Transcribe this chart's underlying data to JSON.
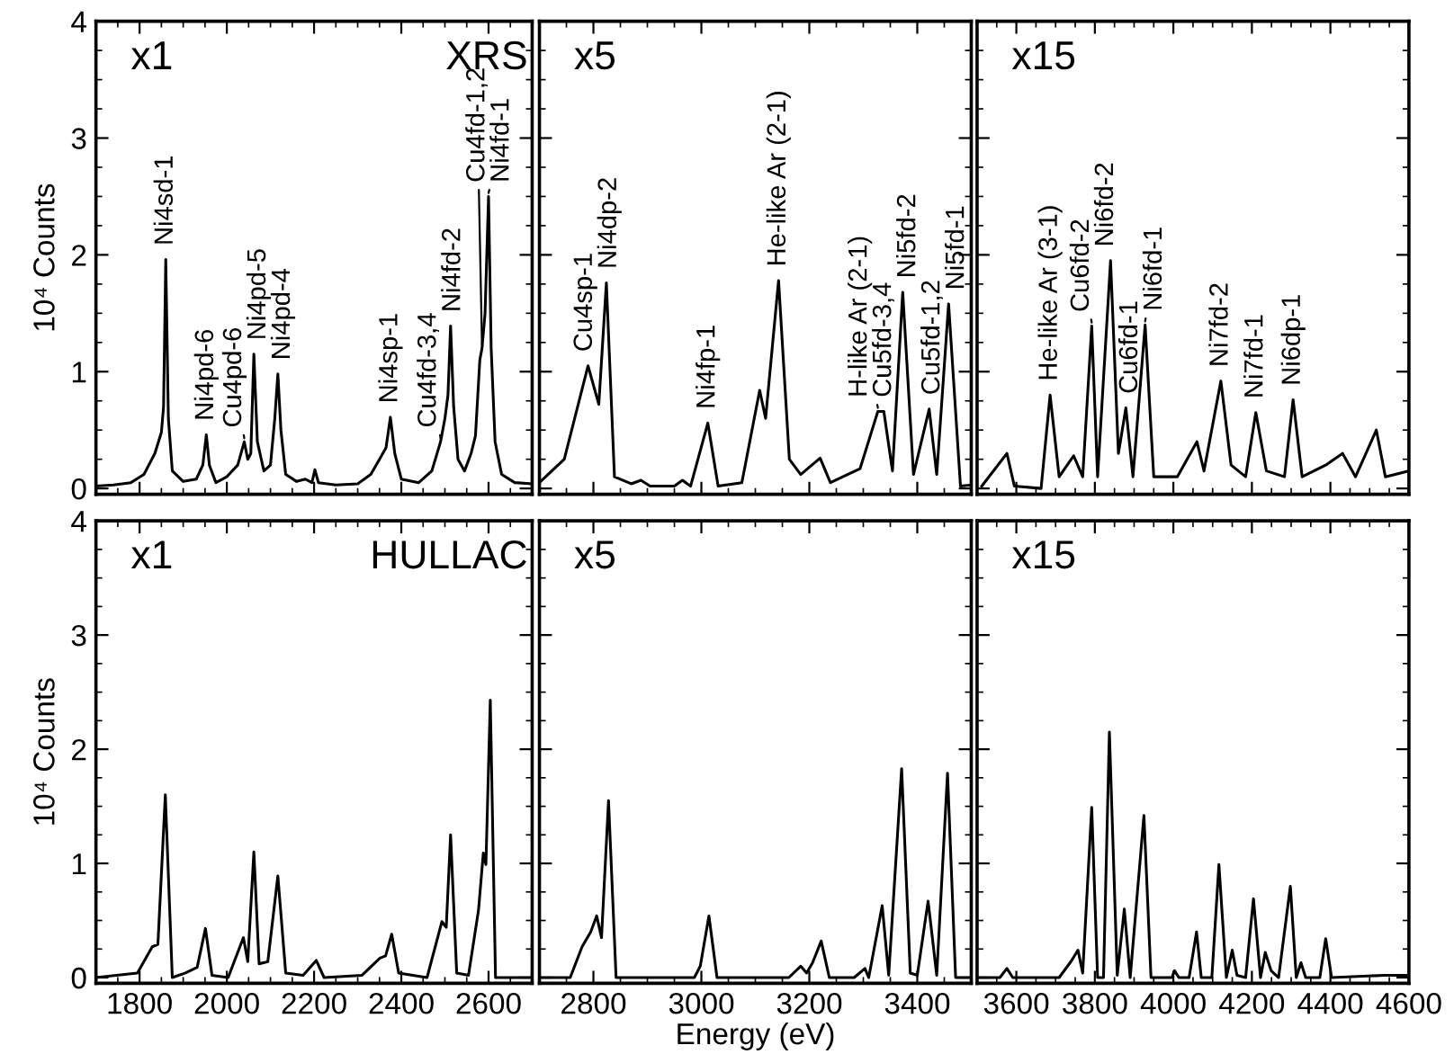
{
  "chart_data": [
    {
      "type": "line",
      "ylabel": "10⁴ Counts",
      "xlim": [
        1700,
        2700
      ],
      "xticks": [
        1800,
        2000,
        2200,
        2400,
        2600
      ],
      "ylim": [
        -0.05,
        4
      ],
      "yticks": [
        0,
        1,
        2,
        3,
        4
      ],
      "tick_labels": "y",
      "x": [
        1700,
        1740,
        1780,
        1810,
        1835,
        1850,
        1855,
        1860,
        1866,
        1875,
        1900,
        1930,
        1945,
        1953,
        1960,
        1975,
        2000,
        2025,
        2040,
        2048,
        2055,
        2062,
        2070,
        2085,
        2100,
        2110,
        2117,
        2124,
        2135,
        2160,
        2180,
        2195,
        2202,
        2210,
        2250,
        2300,
        2330,
        2350,
        2365,
        2375,
        2385,
        2400,
        2440,
        2470,
        2490,
        2500,
        2507,
        2513,
        2520,
        2530,
        2545,
        2560,
        2570,
        2580,
        2585,
        2592,
        2600,
        2606,
        2615,
        2630,
        2660,
        2700
      ],
      "series": [
        {
          "color": "#000000",
          "values": [
            0.02,
            0.03,
            0.05,
            0.12,
            0.3,
            0.48,
            0.7,
            1.96,
            0.6,
            0.15,
            0.06,
            0.08,
            0.2,
            0.46,
            0.2,
            0.05,
            0.1,
            0.2,
            0.4,
            0.25,
            0.3,
            1.15,
            0.4,
            0.15,
            0.2,
            0.6,
            0.98,
            0.5,
            0.12,
            0.06,
            0.08,
            0.05,
            0.16,
            0.05,
            0.03,
            0.04,
            0.12,
            0.25,
            0.35,
            0.61,
            0.3,
            0.08,
            0.05,
            0.15,
            0.4,
            0.6,
            0.8,
            1.39,
            0.7,
            0.25,
            0.15,
            0.3,
            0.45,
            1.1,
            1.2,
            1.5,
            2.5,
            1.2,
            0.4,
            0.12,
            0.05,
            0.04
          ]
        }
      ],
      "annotations": [
        "x1",
        "XRS",
        {
          "text": "Ni4sd-1",
          "x": 1860,
          "y": 1.96
        },
        {
          "text": "Ni4pd-6",
          "x": 1953,
          "y": 0.46
        },
        {
          "text": "Cu4pd-6",
          "x": 2040,
          "y": 0.4
        },
        {
          "text": "Ni4pd-5",
          "x": 2062,
          "y": 1.15
        },
        {
          "text": "Ni4pd-4",
          "x": 2117,
          "y": 0.98
        },
        {
          "text": "Ni4sp-1",
          "x": 2375,
          "y": 0.61
        },
        {
          "text": "Cu4fd-3,4",
          "x": 2490,
          "y": 0.4
        },
        {
          "text": "Ni4fd-2",
          "x": 2513,
          "y": 1.39
        },
        {
          "text": "Cu4fd-1,2",
          "x": 2585,
          "y": 1.2
        },
        {
          "text": "Ni4fd-1",
          "x": 2600,
          "y": 2.5
        }
      ]
    },
    {
      "type": "line",
      "xlim": [
        2700,
        3500
      ],
      "xticks": [
        2800,
        3000,
        3200,
        3400
      ],
      "ylim": [
        -0.05,
        4
      ],
      "yticks": [
        0,
        1,
        2,
        3,
        4
      ],
      "tick_labels": false,
      "x": [
        2700,
        2746,
        2790,
        2810,
        2824,
        2839,
        2870,
        2888,
        2905,
        2950,
        2965,
        2980,
        3012,
        3031,
        3075,
        3108,
        3119,
        3143,
        3163,
        3184,
        3220,
        3239,
        3294,
        3327,
        3338,
        3354,
        3373,
        3393,
        3422,
        3436,
        3458,
        3480,
        3500
      ],
      "series": [
        {
          "color": "#000000",
          "values": [
            0.05,
            0.25,
            1.05,
            0.72,
            1.76,
            0.1,
            0.04,
            0.07,
            0.02,
            0.02,
            0.07,
            0.02,
            0.56,
            0.02,
            0.05,
            0.84,
            0.6,
            1.78,
            0.25,
            0.12,
            0.26,
            0.05,
            0.17,
            0.66,
            0.66,
            0.15,
            1.68,
            0.12,
            0.68,
            0.12,
            1.58,
            0.02,
            0.03
          ]
        }
      ],
      "annotations": [
        "x5",
        {
          "text": "Cu4sp-1",
          "x": 2790,
          "y": 1.05
        },
        {
          "text": "Ni4dp-2",
          "x": 2824,
          "y": 1.76
        },
        {
          "text": "Ni4fp-1",
          "x": 3012,
          "y": 0.56
        },
        {
          "text": "He-like Ar (2-1)",
          "x": 3143,
          "y": 1.78
        },
        {
          "text": "H-like Ar (2-1)",
          "x": 3327,
          "y": 0.66
        },
        {
          "text": "Cu5fd-3,4",
          "x": 3338,
          "y": 0.66
        },
        {
          "text": "Ni5fd-2",
          "x": 3373,
          "y": 1.68
        },
        {
          "text": "Cu5fd-1,2",
          "x": 3422,
          "y": 0.68
        },
        {
          "text": "Ni5fd-1",
          "x": 3458,
          "y": 1.58
        }
      ]
    },
    {
      "type": "line",
      "xlim": [
        3500,
        4600
      ],
      "xticks": [
        3600,
        3800,
        4000,
        4200,
        4400,
        4600
      ],
      "ylim": [
        -0.05,
        4
      ],
      "yticks": [
        0,
        1,
        2,
        3,
        4
      ],
      "tick_labels": false,
      "x": [
        3512,
        3576,
        3595,
        3663,
        3686,
        3709,
        3746,
        3769,
        3792,
        3807,
        3840,
        3860,
        3879,
        3897,
        3928,
        3950,
        4010,
        4060,
        4078,
        4121,
        4147,
        4184,
        4210,
        4237,
        4283,
        4305,
        4328,
        4388,
        4431,
        4464,
        4517,
        4540,
        4600
      ],
      "series": [
        {
          "color": "#000000",
          "values": [
            0.02,
            0.3,
            0.02,
            0.0,
            0.8,
            0.1,
            0.28,
            0.1,
            1.39,
            0.1,
            1.95,
            0.3,
            0.69,
            0.1,
            1.4,
            0.1,
            0.1,
            0.4,
            0.15,
            0.92,
            0.2,
            0.1,
            0.65,
            0.15,
            0.1,
            0.76,
            0.1,
            0.2,
            0.3,
            0.1,
            0.5,
            0.1,
            0.15
          ]
        }
      ],
      "annotations": [
        "x15",
        {
          "text": "He-like Ar (3-1)",
          "x": 3686,
          "y": 0.8
        },
        {
          "text": "Cu6fd-2",
          "x": 3792,
          "y": 1.39
        },
        {
          "text": "Ni6fd-2",
          "x": 3840,
          "y": 1.95
        },
        {
          "text": "Cu6fd-1",
          "x": 3879,
          "y": 0.69
        },
        {
          "text": "Ni6fd-1",
          "x": 3928,
          "y": 1.4
        },
        {
          "text": "Ni7fd-2",
          "x": 4121,
          "y": 0.92
        },
        {
          "text": "Ni7fd-1",
          "x": 4210,
          "y": 0.65
        },
        {
          "text": "Ni6dp-1",
          "x": 4305,
          "y": 0.76
        }
      ]
    },
    {
      "type": "line",
      "ylabel": "10⁴ Counts",
      "xlim": [
        1700,
        2700
      ],
      "xticks": [
        1800,
        2000,
        2200,
        2400,
        2600
      ],
      "ylim": [
        -0.05,
        4
      ],
      "yticks": [
        0,
        1,
        2,
        3,
        4
      ],
      "x": [
        1700,
        1795,
        1829,
        1842,
        1859,
        1875,
        1905,
        1932,
        1951,
        1966,
        2003,
        2038,
        2048,
        2062,
        2074,
        2094,
        2117,
        2135,
        2175,
        2205,
        2223,
        2310,
        2351,
        2364,
        2378,
        2394,
        2459,
        2493,
        2503,
        2513,
        2527,
        2554,
        2577,
        2588,
        2594,
        2604,
        2616,
        2696
      ],
      "series": [
        {
          "color": "#000000",
          "values": [
            0,
            0.04,
            0.27,
            0.29,
            1.6,
            0,
            0.04,
            0.09,
            0.43,
            0.02,
            0,
            0.35,
            0.14,
            1.1,
            0.12,
            0.14,
            0.89,
            0.04,
            0.02,
            0.15,
            0,
            0.02,
            0.17,
            0.19,
            0.38,
            0.04,
            0,
            0.49,
            0.44,
            1.25,
            0.04,
            0.02,
            0.59,
            1.09,
            0.99,
            2.43,
            0,
            0
          ]
        }
      ],
      "annotations": [
        "x1",
        "HULLAC"
      ]
    },
    {
      "type": "line",
      "xlabel": "Energy (eV)",
      "xlim": [
        2700,
        3500
      ],
      "xticks": [
        2800,
        3000,
        3200,
        3400
      ],
      "ylim": [
        -0.05,
        4
      ],
      "yticks": [
        0,
        1,
        2,
        3,
        4
      ],
      "tick_labels": "x",
      "x": [
        2702,
        2757,
        2779,
        2795,
        2806,
        2815,
        2828,
        2842,
        2987,
        2998,
        3014,
        3029,
        3162,
        3184,
        3195,
        3206,
        3222,
        3237,
        3283,
        3303,
        3310,
        3335,
        3347,
        3371,
        3387,
        3400,
        3420,
        3436,
        3456,
        3471,
        3497
      ],
      "series": [
        {
          "color": "#000000",
          "values": [
            0,
            0,
            0.27,
            0.4,
            0.54,
            0.35,
            1.55,
            0,
            0,
            0.1,
            0.54,
            0,
            0,
            0.1,
            0.04,
            0.13,
            0.32,
            0,
            0,
            0.08,
            0,
            0.63,
            0.02,
            1.83,
            0.04,
            0.02,
            0.67,
            0.02,
            1.79,
            0,
            0
          ]
        }
      ],
      "annotations": [
        "x5"
      ]
    },
    {
      "type": "line",
      "xlim": [
        3500,
        4600
      ],
      "xticks": [
        3600,
        3800,
        4000,
        4200,
        4400,
        4600
      ],
      "ylim": [
        -0.05,
        4
      ],
      "yticks": [
        0,
        1,
        2,
        3,
        4
      ],
      "tick_labels": "x",
      "x": [
        3504,
        3558,
        3576,
        3591,
        3709,
        3739,
        3757,
        3769,
        3792,
        3807,
        3822,
        3837,
        3857,
        3875,
        3890,
        3925,
        3943,
        3996,
        4003,
        4014,
        4040,
        4059,
        4071,
        4098,
        4116,
        4135,
        4150,
        4162,
        4184,
        4204,
        4222,
        4234,
        4249,
        4268,
        4298,
        4313,
        4325,
        4337,
        4373,
        4388,
        4403,
        4539,
        4592
      ],
      "series": [
        {
          "color": "#000000",
          "values": [
            0,
            0,
            0.08,
            0,
            0,
            0.14,
            0.24,
            0.04,
            1.49,
            0,
            0,
            2.15,
            0.02,
            0.6,
            0,
            1.42,
            0,
            0,
            0.06,
            0,
            0,
            0.4,
            0,
            0,
            0.99,
            0,
            0.24,
            0.02,
            0,
            0.69,
            0,
            0.22,
            0.06,
            0,
            0.8,
            0,
            0.13,
            0,
            0,
            0.34,
            0,
            0.02,
            0.02
          ]
        }
      ],
      "annotations": [
        "x15"
      ]
    }
  ]
}
